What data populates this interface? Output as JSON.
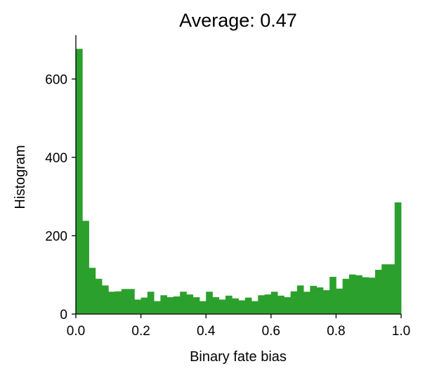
{
  "chart_data": {
    "type": "bar",
    "title": "Average: 0.47",
    "xlabel": "Binary fate bias",
    "ylabel": "Histogram",
    "xlim": [
      0.0,
      1.0
    ],
    "ylim": [
      0,
      712
    ],
    "xticks": [
      0.0,
      0.2,
      0.4,
      0.6,
      0.8,
      1.0
    ],
    "xtick_labels": [
      "0.0",
      "0.2",
      "0.4",
      "0.6",
      "0.8",
      "1.0"
    ],
    "yticks": [
      0,
      200,
      400,
      600
    ],
    "ytick_labels": [
      "0",
      "200",
      "400",
      "600"
    ],
    "grid": false,
    "bar_color": "#2ca02c",
    "bin_width": 0.02,
    "bin_starts": [
      0.0,
      0.02,
      0.04,
      0.06,
      0.08,
      0.1,
      0.12,
      0.14,
      0.16,
      0.18,
      0.2,
      0.22,
      0.24,
      0.26,
      0.28,
      0.3,
      0.32,
      0.34,
      0.36,
      0.38,
      0.4,
      0.42,
      0.44,
      0.46,
      0.48,
      0.5,
      0.52,
      0.54,
      0.56,
      0.58,
      0.6,
      0.62,
      0.64,
      0.66,
      0.68,
      0.7,
      0.72,
      0.74,
      0.76,
      0.78,
      0.8,
      0.82,
      0.84,
      0.86,
      0.88,
      0.9,
      0.92,
      0.94,
      0.96,
      0.98
    ],
    "values": [
      677,
      238,
      118,
      90,
      73,
      57,
      58,
      64,
      64,
      37,
      42,
      57,
      33,
      48,
      43,
      45,
      57,
      50,
      43,
      33,
      57,
      43,
      37,
      47,
      40,
      35,
      42,
      33,
      48,
      50,
      57,
      47,
      43,
      58,
      73,
      57,
      72,
      68,
      61,
      95,
      65,
      90,
      101,
      99,
      94,
      93,
      113,
      127,
      127,
      285
    ]
  }
}
